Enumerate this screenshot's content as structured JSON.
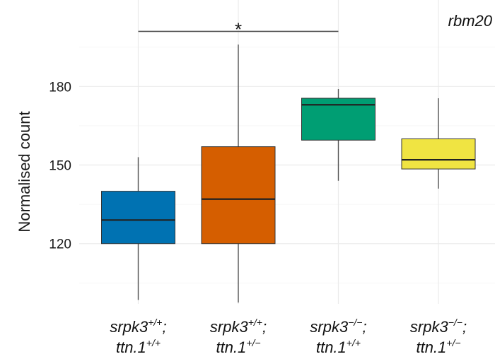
{
  "chart_data": {
    "type": "boxplot",
    "title": "rbm20",
    "xlabel": "",
    "ylabel": "Normalised count",
    "ylim": [
      97,
      213
    ],
    "yticks": [
      120,
      150,
      180
    ],
    "grid": true,
    "categories": [
      {
        "line1": "srpk3",
        "sup1": "+/+",
        "line2": "ttn.1",
        "sup2": "+/+"
      },
      {
        "line1": "srpk3",
        "sup1": "+/+",
        "line2": "ttn.1",
        "sup2": "+/−"
      },
      {
        "line1": "srpk3",
        "sup1": "−/−",
        "line2": "ttn.1",
        "sup2": "+/+"
      },
      {
        "line1": "srpk3",
        "sup1": "−/−",
        "line2": "ttn.1",
        "sup2": "+/−"
      }
    ],
    "boxes": [
      {
        "whisker_low": 98.5,
        "q1": 120,
        "median": 129,
        "q3": 140,
        "whisker_high": 153,
        "color": "#0072B2"
      },
      {
        "whisker_low": 97.5,
        "q1": 120,
        "median": 137,
        "q3": 157,
        "whisker_high": 196,
        "color": "#D55E00"
      },
      {
        "whisker_low": 144,
        "q1": 159.5,
        "median": 173,
        "q3": 175.5,
        "whisker_high": 179,
        "color": "#009E73"
      },
      {
        "whisker_low": 141,
        "q1": 148.5,
        "median": 152,
        "q3": 160,
        "whisker_high": 175.5,
        "color": "#F0E442"
      }
    ],
    "significance": [
      {
        "from": 0,
        "to": 2,
        "y": 201,
        "label": "*"
      }
    ]
  }
}
